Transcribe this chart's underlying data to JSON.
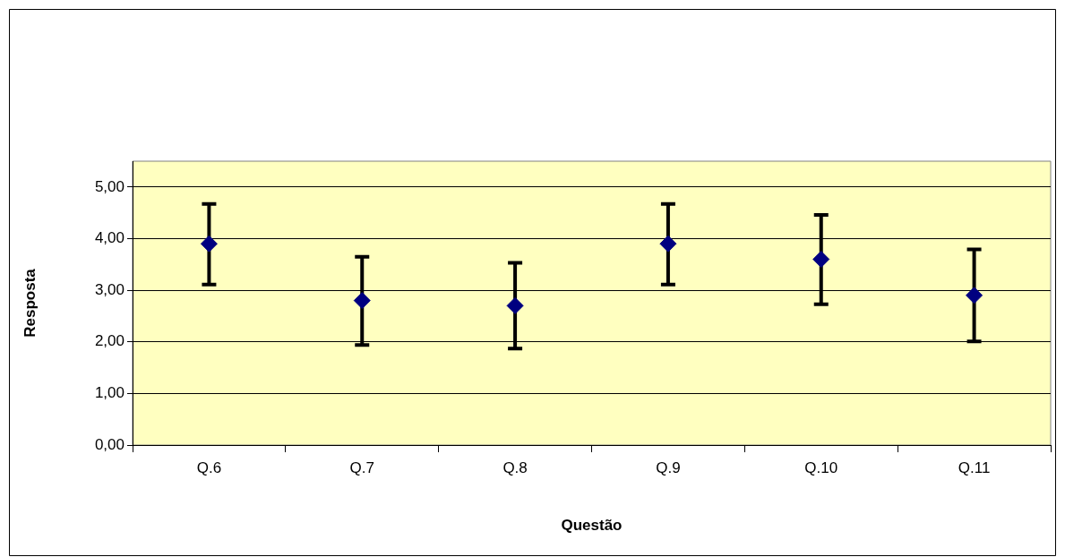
{
  "chart_data": {
    "type": "scatter",
    "xlabel": "Questão",
    "ylabel": "Resposta",
    "categories": [
      "Q.6",
      "Q.7",
      "Q.8",
      "Q.9",
      "Q.10",
      "Q.11"
    ],
    "values": [
      3.9,
      2.8,
      2.7,
      3.9,
      3.6,
      2.9
    ],
    "errors": [
      [
        3.11,
        4.67
      ],
      [
        1.94,
        3.65
      ],
      [
        1.87,
        3.53
      ],
      [
        3.11,
        4.67
      ],
      [
        2.73,
        4.46
      ],
      [
        2.01,
        3.79
      ]
    ],
    "color": "#000080",
    "marker": "diamond",
    "legend": false,
    "grid": "y",
    "ylim": [
      0,
      5.5
    ],
    "yticks": [
      {
        "value": 0,
        "label": "0,00"
      },
      {
        "value": 1,
        "label": "1,00"
      },
      {
        "value": 2,
        "label": "2,00"
      },
      {
        "value": 3,
        "label": "3,00"
      },
      {
        "value": 4,
        "label": "4,00"
      },
      {
        "value": 5,
        "label": "5,00"
      }
    ]
  }
}
